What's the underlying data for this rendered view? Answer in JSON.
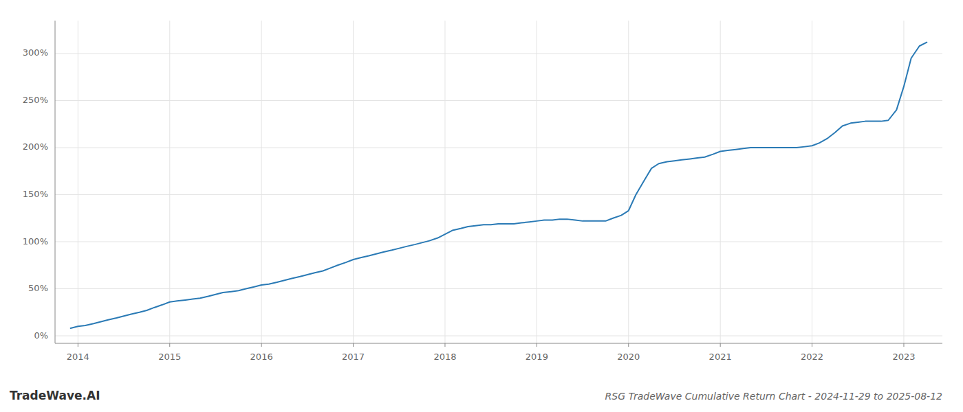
{
  "chart_data": {
    "type": "line",
    "title": "RSG TradeWave Cumulative Return Chart - 2024-11-29 to 2025-08-12",
    "annotations": [
      "TradeWave.AI"
    ],
    "x": [
      2013.92,
      2014.0,
      2014.08,
      2014.17,
      2014.25,
      2014.33,
      2014.42,
      2014.5,
      2014.58,
      2014.67,
      2014.75,
      2014.83,
      2014.92,
      2015.0,
      2015.08,
      2015.17,
      2015.25,
      2015.33,
      2015.42,
      2015.5,
      2015.58,
      2015.67,
      2015.75,
      2015.83,
      2015.92,
      2016.0,
      2016.08,
      2016.17,
      2016.25,
      2016.33,
      2016.42,
      2016.5,
      2016.58,
      2016.67,
      2016.75,
      2016.83,
      2016.92,
      2017.0,
      2017.08,
      2017.17,
      2017.25,
      2017.33,
      2017.42,
      2017.5,
      2017.58,
      2017.67,
      2017.75,
      2017.83,
      2017.92,
      2018.0,
      2018.08,
      2018.17,
      2018.25,
      2018.33,
      2018.42,
      2018.5,
      2018.58,
      2018.67,
      2018.75,
      2018.83,
      2018.92,
      2019.0,
      2019.08,
      2019.17,
      2019.25,
      2019.33,
      2019.42,
      2019.5,
      2019.58,
      2019.67,
      2019.75,
      2019.83,
      2019.92,
      2020.0,
      2020.08,
      2020.17,
      2020.25,
      2020.33,
      2020.42,
      2020.5,
      2020.58,
      2020.67,
      2020.75,
      2020.83,
      2020.92,
      2021.0,
      2021.08,
      2021.17,
      2021.25,
      2021.33,
      2021.42,
      2021.5,
      2021.58,
      2021.67,
      2021.75,
      2021.83,
      2021.92,
      2022.0,
      2022.08,
      2022.17,
      2022.25,
      2022.33,
      2022.42,
      2022.5,
      2022.58,
      2022.67,
      2022.75,
      2022.83,
      2022.92,
      2023.0,
      2023.08,
      2023.17,
      2023.25
    ],
    "values": [
      8,
      10,
      11,
      13,
      15,
      17,
      19,
      21,
      23,
      25,
      27,
      30,
      33,
      36,
      37,
      38,
      39,
      40,
      42,
      44,
      46,
      47,
      48,
      50,
      52,
      54,
      55,
      57,
      59,
      61,
      63,
      65,
      67,
      69,
      72,
      75,
      78,
      81,
      83,
      85,
      87,
      89,
      91,
      93,
      95,
      97,
      99,
      101,
      104,
      108,
      112,
      114,
      116,
      117,
      118,
      118,
      119,
      119,
      119,
      120,
      121,
      122,
      123,
      123,
      124,
      124,
      123,
      122,
      122,
      122,
      122,
      125,
      128,
      133,
      150,
      165,
      178,
      183,
      185,
      186,
      187,
      188,
      189,
      190,
      193,
      196,
      197,
      198,
      199,
      200,
      200,
      200,
      200,
      200,
      200,
      200,
      201,
      202,
      205,
      210,
      216,
      223,
      226,
      227,
      228,
      228,
      228,
      229,
      240,
      265,
      295,
      308,
      312
    ],
    "color": "#2a7ab5",
    "xlim": [
      2013.75,
      2023.42
    ],
    "xticks": [
      2014,
      2015,
      2016,
      2017,
      2018,
      2019,
      2020,
      2021,
      2022,
      2023
    ],
    "ylim": [
      -8,
      335
    ],
    "yticks": [
      {
        "value": 0,
        "label": "0%"
      },
      {
        "value": 50,
        "label": "50%"
      },
      {
        "value": 100,
        "label": "100%"
      },
      {
        "value": 150,
        "label": "150%"
      },
      {
        "value": 200,
        "label": "200%"
      },
      {
        "value": 250,
        "label": "250%"
      },
      {
        "value": 300,
        "label": "300%"
      }
    ],
    "grid": true
  }
}
